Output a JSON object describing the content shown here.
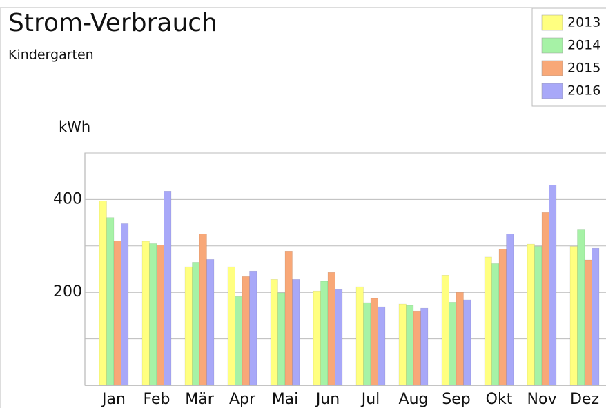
{
  "chart_data": {
    "type": "bar",
    "title": "Strom-Verbrauch",
    "subtitle": "Kindergarten",
    "y_label": "kWh",
    "categories": [
      "Jan",
      "Feb",
      "Mär",
      "Apr",
      "Mai",
      "Jun",
      "Jul",
      "Aug",
      "Sep",
      "Okt",
      "Nov",
      "Dez"
    ],
    "series": [
      {
        "name": "2013",
        "color": "#ffff80",
        "values": [
          397,
          310,
          255,
          255,
          228,
          203,
          212,
          175,
          237,
          276,
          304,
          299
        ]
      },
      {
        "name": "2014",
        "color": "#a6f2a6",
        "values": [
          361,
          305,
          265,
          191,
          199,
          224,
          178,
          172,
          179,
          262,
          299,
          336
        ]
      },
      {
        "name": "2015",
        "color": "#f8a878",
        "values": [
          311,
          302,
          326,
          234,
          289,
          243,
          187,
          160,
          200,
          293,
          372,
          270
        ]
      },
      {
        "name": "2016",
        "color": "#a8a8f8",
        "values": [
          348,
          418,
          271,
          246,
          228,
          206,
          169,
          166,
          184,
          326,
          431,
          295
        ]
      }
    ],
    "ylim": [
      0,
      500
    ],
    "yticks": [
      200,
      400
    ],
    "minor_grid": [
      100,
      300,
      500
    ],
    "grid": true,
    "legend": "top-right"
  }
}
